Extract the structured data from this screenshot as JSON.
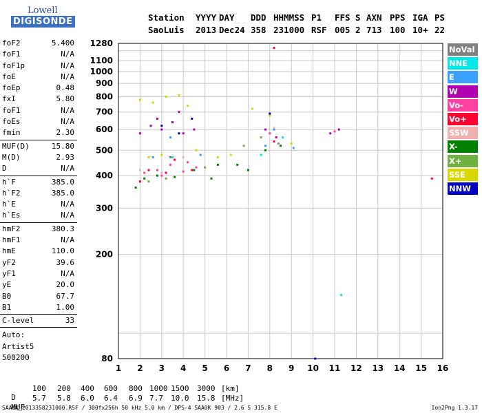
{
  "logo": {
    "line1": "Lowell",
    "line2": "DIGISONDE"
  },
  "header": {
    "labels": [
      "Station",
      "YYYY",
      "DAY",
      "DDD",
      "HHMMSS",
      "P1",
      "FFS",
      "S",
      "AXN",
      "PPS",
      "IGA",
      "PS"
    ],
    "values": [
      "SaoLuis",
      "2013",
      "Dec24",
      "358",
      "231000",
      "RSF",
      "005",
      "2",
      "713",
      "100",
      "10+",
      "22"
    ]
  },
  "params": [
    {
      "k": "foF2",
      "v": "5.400"
    },
    {
      "k": "foF1",
      "v": "N/A"
    },
    {
      "k": "foF1p",
      "v": "N/A"
    },
    {
      "k": "foE",
      "v": "N/A"
    },
    {
      "k": "foEp",
      "v": "0.48"
    },
    {
      "k": "fxI",
      "v": "5.80"
    },
    {
      "k": "foF1",
      "v": "N/A"
    },
    {
      "k": "foEs",
      "v": "N/A"
    },
    {
      "k": "fmin",
      "v": "2.30"
    },
    {
      "sep": true
    },
    {
      "k": "MUF(D)",
      "v": "15.80"
    },
    {
      "k": "M(D)",
      "v": "2.93"
    },
    {
      "k": "D",
      "v": "N/A"
    },
    {
      "sep": true
    },
    {
      "k": "h`F",
      "v": "385.0"
    },
    {
      "k": "h`F2",
      "v": "385.0"
    },
    {
      "k": "h`E",
      "v": "N/A"
    },
    {
      "k": "h`Es",
      "v": "N/A"
    },
    {
      "sep": true
    },
    {
      "k": "hmF2",
      "v": "380.3"
    },
    {
      "k": "hmF1",
      "v": "N/A"
    },
    {
      "k": "hmE",
      "v": "110.0"
    },
    {
      "k": "yF2",
      "v": "39.6"
    },
    {
      "k": "yF1",
      "v": "N/A"
    },
    {
      "k": "yE",
      "v": "20.0"
    },
    {
      "k": "B0",
      "v": "67.7"
    },
    {
      "k": "B1",
      "v": "1.00"
    },
    {
      "sep": true
    },
    {
      "k": "C-level",
      "v": "33"
    },
    {
      "sep": true
    }
  ],
  "auto": [
    "Auto:",
    "Artist5",
    "500200"
  ],
  "footer": {
    "d_label": "D",
    "d_values": [
      "100",
      "200",
      "400",
      "600",
      "800",
      "1000",
      "1500",
      "3000"
    ],
    "d_unit": "[km]",
    "muf_label": "MUF",
    "muf_values": [
      "5.7",
      "5.8",
      "6.0",
      "6.4",
      "6.9",
      "7.7",
      "10.0",
      "15.8"
    ],
    "muf_unit": "[MHz]",
    "file_line": "SAA0K_2013358231000.RSF / 300fx256h 50 kHz 5.0 km / DPS-4 SAA0K 903 / 2.6 S 315.8 E",
    "version": "Ion2Png 1.3.17"
  },
  "legend": [
    {
      "label": "NoVal",
      "color": "#808080"
    },
    {
      "label": "NNE",
      "color": "#00e8e8"
    },
    {
      "label": "E",
      "color": "#3aa0ff"
    },
    {
      "label": "W",
      "color": "#b000b0"
    },
    {
      "label": "Vo-",
      "color": "#ff40a0"
    },
    {
      "label": "Vo+",
      "color": "#ff0030"
    },
    {
      "label": "SSW",
      "color": "#f0b0b0"
    },
    {
      "label": "X-",
      "color": "#008000"
    },
    {
      "label": "X+",
      "color": "#70b040"
    },
    {
      "label": "SSE",
      "color": "#d8d800"
    },
    {
      "label": "NNW",
      "color": "#0000c0"
    }
  ],
  "chart_data": {
    "type": "scatter",
    "title": "",
    "xlabel": "",
    "ylabel": "",
    "xlim": [
      1,
      16
    ],
    "ylim": [
      80,
      1280
    ],
    "y_scale": "log",
    "xticks": [
      1,
      2,
      3,
      4,
      5,
      6,
      7,
      8,
      9,
      10,
      11,
      12,
      13,
      14,
      15,
      16
    ],
    "yticks": [
      80,
      200,
      300,
      400,
      500,
      600,
      700,
      800,
      900,
      1000,
      1100,
      1280
    ],
    "grid": true,
    "legend_position": "right",
    "series": [
      {
        "color": "#b000b0",
        "points": [
          [
            2.0,
            580
          ],
          [
            2.5,
            620
          ],
          [
            3.0,
            600
          ],
          [
            3.5,
            640
          ],
          [
            4.0,
            580
          ],
          [
            4.5,
            600
          ],
          [
            2.8,
            660
          ],
          [
            3.8,
            700
          ],
          [
            7.8,
            600
          ],
          [
            8.3,
            560
          ],
          [
            10.8,
            580
          ],
          [
            11.2,
            600
          ]
        ]
      },
      {
        "color": "#ff40a0",
        "points": [
          [
            2.2,
            410
          ],
          [
            2.8,
            420
          ],
          [
            3.4,
            440
          ],
          [
            4.0,
            415
          ],
          [
            4.6,
            430
          ],
          [
            3.0,
            400
          ],
          [
            4.2,
            450
          ],
          [
            8.0,
            580
          ],
          [
            11.0,
            590
          ]
        ]
      },
      {
        "color": "#ff0030",
        "points": [
          [
            2.4,
            420
          ],
          [
            3.2,
            410
          ],
          [
            4.4,
            420
          ],
          [
            3.6,
            460
          ],
          [
            2.0,
            380
          ],
          [
            8.2,
            540
          ]
        ]
      },
      {
        "color": "#008000",
        "points": [
          [
            1.8,
            360
          ],
          [
            2.2,
            390
          ],
          [
            2.8,
            400
          ],
          [
            3.6,
            395
          ],
          [
            4.5,
            420
          ],
          [
            5.3,
            390
          ],
          [
            5.6,
            440
          ],
          [
            6.5,
            440
          ],
          [
            7.0,
            420
          ],
          [
            7.8,
            500
          ],
          [
            8.5,
            520
          ]
        ]
      },
      {
        "color": "#d8d800",
        "points": [
          [
            2.0,
            780
          ],
          [
            2.6,
            760
          ],
          [
            3.2,
            800
          ],
          [
            3.8,
            810
          ],
          [
            4.2,
            740
          ],
          [
            2.4,
            470
          ],
          [
            3.0,
            480
          ],
          [
            4.6,
            500
          ],
          [
            5.6,
            470
          ],
          [
            6.2,
            480
          ],
          [
            7.2,
            720
          ],
          [
            8.0,
            680
          ],
          [
            9.0,
            530
          ]
        ]
      },
      {
        "color": "#3aa0ff",
        "points": [
          [
            7.8,
            520
          ],
          [
            8.2,
            600
          ],
          [
            9.1,
            510
          ],
          [
            2.6,
            470
          ],
          [
            4.8,
            480
          ],
          [
            3.4,
            560
          ]
        ]
      },
      {
        "color": "#00e8e8",
        "points": [
          [
            3.5,
            470
          ],
          [
            7.6,
            480
          ],
          [
            8.6,
            560
          ],
          [
            11.3,
            140
          ]
        ]
      },
      {
        "color": "#0000c0",
        "points": [
          [
            3.0,
            620
          ],
          [
            3.8,
            580
          ],
          [
            4.4,
            660
          ],
          [
            8.0,
            690
          ],
          [
            10.1,
            80
          ]
        ]
      },
      {
        "color": "#f0b0b0",
        "points": [
          [
            2.0,
            420
          ],
          [
            3.0,
            410
          ],
          [
            4.0,
            470
          ],
          [
            8.2,
            610
          ]
        ]
      },
      {
        "color": "#70b040",
        "points": [
          [
            2.4,
            380
          ],
          [
            3.2,
            390
          ],
          [
            5.0,
            430
          ],
          [
            6.8,
            520
          ],
          [
            7.6,
            560
          ]
        ]
      },
      {
        "color": "#808080",
        "points": [
          [
            3.4,
            470
          ],
          [
            8.4,
            530
          ]
        ]
      },
      {
        "color": "#ff0030",
        "points": [
          [
            15.5,
            390
          ],
          [
            8.2,
            1230
          ]
        ]
      }
    ]
  }
}
